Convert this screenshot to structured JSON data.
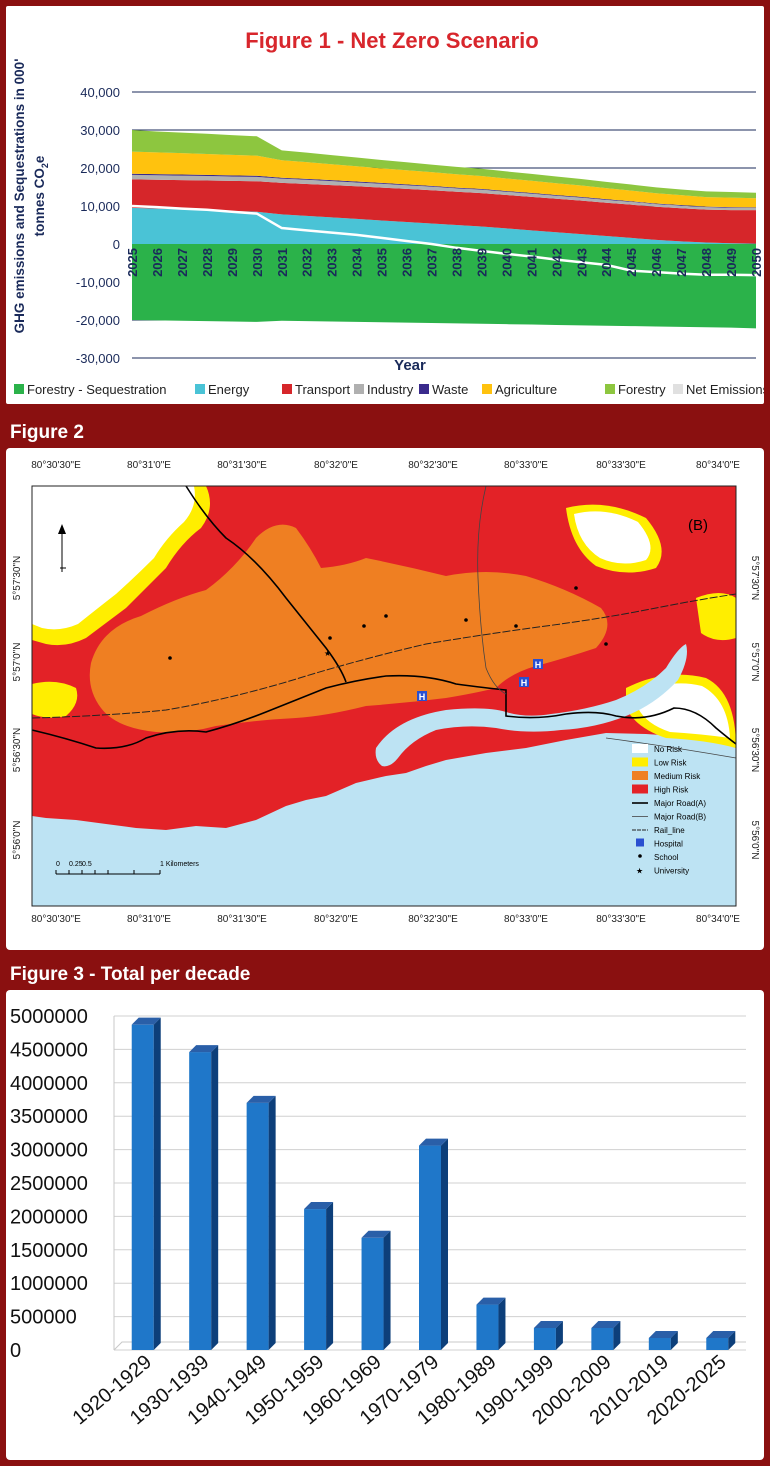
{
  "figure1": {
    "title": "Figure 1 - Net Zero Scenario",
    "chart_data": {
      "type": "area",
      "title": "Figure 1 - Net Zero Scenario",
      "xlabel": "Year",
      "ylabel_line1": "GHG emissions and Sequestrations in 000'",
      "ylabel_line2": "tonnes CO",
      "ylabel_sub": "2",
      "ylabel_tail": "e",
      "ylim": [
        -30000,
        40000
      ],
      "yticks": [
        40000,
        30000,
        20000,
        10000,
        0,
        -10000,
        -20000,
        -30000
      ],
      "ytick_labels": [
        "40,000",
        "30,000",
        "20,000",
        "10,000",
        "0",
        "-10,000",
        "-20,000",
        "-30,000"
      ],
      "x": [
        2025,
        2026,
        2027,
        2028,
        2029,
        2030,
        2031,
        2032,
        2033,
        2034,
        2035,
        2036,
        2037,
        2038,
        2039,
        2040,
        2041,
        2042,
        2043,
        2044,
        2045,
        2046,
        2047,
        2048,
        2049,
        2050
      ],
      "series": [
        {
          "name": "Forestry - Sequestration",
          "color": "#2bb24a",
          "values": [
            -20000,
            -20100,
            -20200,
            -20300,
            -20400,
            -20500,
            -20200,
            -20300,
            -20400,
            -20500,
            -20600,
            -20700,
            -20800,
            -20900,
            -21000,
            -21100,
            -21200,
            -21300,
            -21400,
            -21500,
            -21600,
            -21700,
            -21800,
            -21900,
            -22000,
            -22200
          ]
        },
        {
          "name": "Energy",
          "color": "#4ac3d6",
          "values": [
            9500,
            9300,
            9100,
            8900,
            8700,
            8500,
            7800,
            7400,
            7000,
            6600,
            6200,
            5800,
            5400,
            5000,
            4600,
            4100,
            3600,
            3100,
            2600,
            2100,
            1600,
            1100,
            700,
            400,
            200,
            100
          ]
        },
        {
          "name": "Transport",
          "color": "#d6262a",
          "values": [
            7500,
            7600,
            7700,
            7800,
            7900,
            8000,
            8300,
            8400,
            8500,
            8600,
            8650,
            8700,
            8750,
            8750,
            8800,
            8800,
            8800,
            8800,
            8800,
            8750,
            8750,
            8700,
            8700,
            8650,
            8700,
            8800
          ]
        },
        {
          "name": "Industry",
          "color": "#b0b0b0",
          "values": [
            1200,
            1200,
            1200,
            1200,
            1150,
            1150,
            1100,
            1100,
            1050,
            1000,
            1000,
            950,
            950,
            900,
            900,
            850,
            850,
            800,
            800,
            750,
            750,
            700,
            700,
            650,
            650,
            600
          ]
        },
        {
          "name": "Waste",
          "color": "#3a2a8c",
          "values": [
            300,
            300,
            300,
            300,
            300,
            300,
            250,
            250,
            250,
            250,
            250,
            250,
            200,
            200,
            200,
            200,
            200,
            200,
            200,
            200,
            150,
            150,
            150,
            150,
            150,
            150
          ]
        },
        {
          "name": "Agriculture",
          "color": "#ffc20e",
          "values": [
            5800,
            5700,
            5600,
            5500,
            5400,
            5300,
            4600,
            4400,
            4200,
            4000,
            3800,
            3700,
            3600,
            3500,
            3400,
            3300,
            3200,
            3100,
            3000,
            2900,
            2800,
            2700,
            2600,
            2500,
            2500,
            2400
          ]
        },
        {
          "name": "Forestry",
          "color": "#8dc63f",
          "values": [
            5700,
            5500,
            5400,
            5300,
            5200,
            5100,
            2600,
            2500,
            2400,
            2300,
            2200,
            2100,
            2000,
            1950,
            1900,
            1850,
            1800,
            1750,
            1700,
            1650,
            1600,
            1550,
            1500,
            1500,
            1500,
            1450
          ]
        },
        {
          "name": "Net Emissions",
          "color": "#e0e0e0",
          "line": true,
          "values": [
            10000,
            9700,
            9300,
            9000,
            8500,
            8000,
            4200,
            3600,
            3000,
            2400,
            1600,
            800,
            0,
            -1000,
            -1800,
            -2600,
            -3300,
            -4100,
            -4800,
            -5500,
            -7000,
            -7400,
            -7800,
            -8100,
            -8100,
            -8200
          ]
        }
      ]
    }
  },
  "figure2": {
    "title": "Figure 2",
    "panel_label": "(B)",
    "top_ticks": [
      "80°30'30\"E",
      "80°31'0\"E",
      "80°31'30\"E",
      "80°32'0\"E",
      "80°32'30\"E",
      "80°33'0\"E",
      "80°33'30\"E",
      "80°34'0\"E"
    ],
    "bottom_ticks": [
      "80°30'30\"E",
      "80°31'0\"E",
      "80°31'30\"E",
      "80°32'0\"E",
      "80°32'30\"E",
      "80°33'0\"E",
      "80°33'30\"E",
      "80°34'0\"E"
    ],
    "left_ticks": [
      "5°57'30\"N",
      "5°57'0\"N",
      "5°56'30\"N",
      "5°56'0\"N"
    ],
    "right_ticks": [
      "5°57'30\"N",
      "5°57'0\"N",
      "5°56'30\"N",
      "5°56'0\"N"
    ],
    "scale_labels": [
      "0",
      "0.25",
      "0.5",
      "1 Kilometers"
    ],
    "legend": [
      {
        "label": "No Risk",
        "swatch": "#ffffff"
      },
      {
        "label": "Low Risk",
        "swatch": "#ffee00"
      },
      {
        "label": "Medium Risk",
        "swatch": "#ef7f22"
      },
      {
        "label": "High Risk",
        "swatch": "#e32227"
      },
      {
        "label": "Major Road(A)",
        "symbol": "line-thick"
      },
      {
        "label": "Major Road(B)",
        "symbol": "line-thin"
      },
      {
        "label": "Rail_line",
        "symbol": "rail"
      },
      {
        "label": "Hospital",
        "symbol": "H"
      },
      {
        "label": "School",
        "symbol": "school"
      },
      {
        "label": "University",
        "symbol": "★"
      }
    ],
    "colors": {
      "sea": "#bde3f3",
      "high": "#e32227",
      "medium": "#ef7f22",
      "low": "#ffee00",
      "none": "#ffffff"
    }
  },
  "figure3": {
    "title": "Figure 3 - Total per decade",
    "chart_data": {
      "type": "bar",
      "title": "Figure 3 - Total per decade",
      "categories": [
        "1920-1929",
        "1930-1939",
        "1940-1949",
        "1950-1959",
        "1960-1969",
        "1970-1979",
        "1980-1989",
        "1990-1999",
        "2000-2009",
        "2010-2019",
        "2020-2025"
      ],
      "values": [
        4870000,
        4460000,
        3700000,
        2110000,
        1680000,
        3060000,
        680000,
        330000,
        330000,
        180000,
        180000
      ],
      "ylim": [
        0,
        5000000
      ],
      "yticks": [
        5000000,
        4500000,
        4000000,
        3500000,
        3000000,
        2500000,
        2000000,
        1500000,
        1000000,
        500000,
        0
      ],
      "ytick_labels": [
        "5000000",
        "4500000",
        "4000000",
        "3500000",
        "3000000",
        "2500000",
        "2000000",
        "1500000",
        "1000000",
        "500000",
        "0"
      ],
      "bar_color": "#1f77c9",
      "bar_side": "#0d3f7a"
    }
  }
}
